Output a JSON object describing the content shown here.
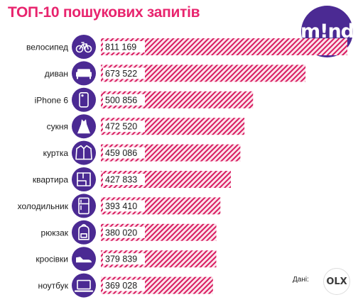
{
  "title": "ТОП-10 пошукових запитів",
  "brand_logo": "m!nd",
  "source_label": "Дані:",
  "source_logo": "OLX",
  "colors": {
    "title": "#e8246e",
    "bar_fill": "#fce4ec",
    "bar_stripe": "#d81b60",
    "icon_circle": "#4b2a93",
    "brand_logo_bg": "#4b2a93"
  },
  "chart_data": {
    "type": "bar",
    "orientation": "horizontal",
    "title": "ТОП-10 пошукових запитів",
    "categories": [
      "велосипед",
      "диван",
      "iPhone 6",
      "сукня",
      "куртка",
      "квартира",
      "холодильник",
      "рюкзак",
      "кросівки",
      "ноутбук"
    ],
    "values": [
      811169,
      673522,
      500856,
      472520,
      459086,
      427833,
      393410,
      380020,
      379839,
      369028
    ],
    "value_labels": [
      "811 169",
      "673 522",
      "500 856",
      "472 520",
      "459 086",
      "427 833",
      "393 410",
      "380 020",
      "379 839",
      "369 028"
    ],
    "icons": [
      "bicycle-icon",
      "sofa-icon",
      "phone-icon",
      "dress-icon",
      "jacket-icon",
      "floorplan-icon",
      "fridge-icon",
      "backpack-icon",
      "sneaker-icon",
      "laptop-icon"
    ],
    "xlim": [
      0,
      811169
    ],
    "grid": false,
    "legend": "none"
  }
}
